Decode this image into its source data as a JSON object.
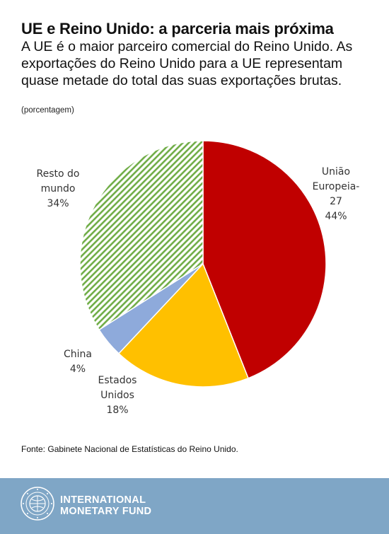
{
  "header": {
    "title": "UE e Reino Unido: a parceria mais próxima",
    "subtitle": "A UE é o maior parceiro comercial do Reino Unido. As exportações do Reino Unido para a UE representam quase metade do total das suas exportações brutas.",
    "unit": "(porcentagem)"
  },
  "chart_data": {
    "type": "pie",
    "slices": [
      {
        "label_lines": [
          "União",
          "Europeia-",
          "27"
        ],
        "value": 44,
        "value_label": "44%",
        "color": "#c00000",
        "pattern": "solid"
      },
      {
        "label_lines": [
          "Estados",
          "Unidos"
        ],
        "value": 18,
        "value_label": "18%",
        "color": "#ffc000",
        "pattern": "solid"
      },
      {
        "label_lines": [
          "China"
        ],
        "value": 4,
        "value_label": "4%",
        "color": "#8eaadb",
        "pattern": "solid"
      },
      {
        "label_lines": [
          "Resto do",
          "mundo"
        ],
        "value": 34,
        "value_label": "34%",
        "color": "#70ad47",
        "pattern": "diagonal-stripes"
      }
    ],
    "start": "12 o'clock",
    "direction": "clockwise"
  },
  "source": "Fonte: Gabinete Nacional de Estatísticas do Reino Unido.",
  "footer": {
    "line1": "INTERNATIONAL",
    "line2": "MONETARY FUND",
    "seal_text": "INTERNATIONAL MONETARY FUND",
    "bg_color": "#7fa6c6"
  }
}
